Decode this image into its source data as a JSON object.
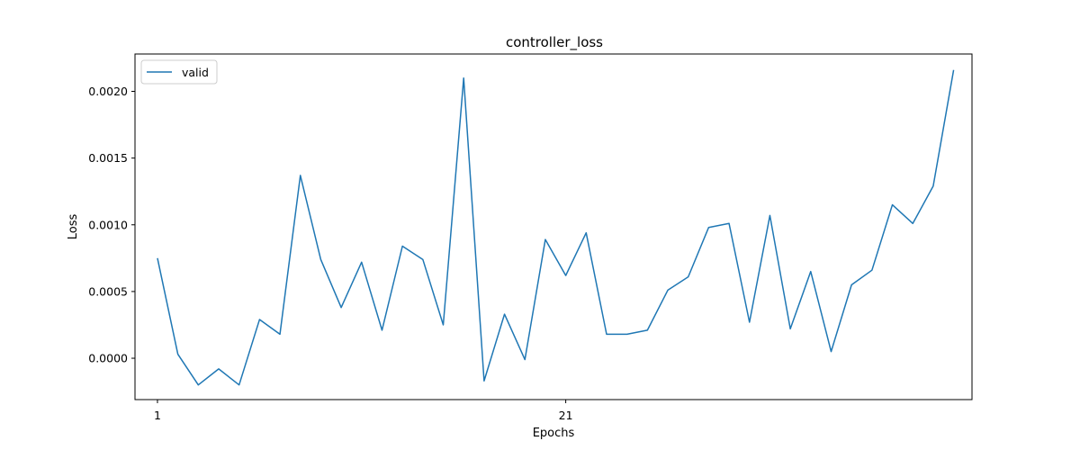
{
  "chart_data": {
    "type": "line",
    "title": "controller_loss",
    "xlabel": "Epochs",
    "ylabel": "Loss",
    "xlim": [
      -0.1,
      40.9
    ],
    "ylim": [
      -0.00031,
      0.00228
    ],
    "xticks": [
      1,
      21
    ],
    "xtick_labels": [
      "1",
      "21"
    ],
    "yticks": [
      0.0,
      0.0005,
      0.001,
      0.0015,
      0.002
    ],
    "ytick_labels": [
      "0.0000",
      "0.0005",
      "0.0010",
      "0.0015",
      "0.0020"
    ],
    "legend": {
      "position": "top-left"
    },
    "grid": false,
    "series": [
      {
        "name": "valid",
        "color": "#1f77b4",
        "x": [
          1,
          2,
          3,
          4,
          5,
          6,
          7,
          8,
          9,
          10,
          11,
          12,
          13,
          14,
          15,
          16,
          17,
          18,
          19,
          20,
          21,
          22,
          23,
          24,
          25,
          26,
          27,
          28,
          29,
          30,
          31,
          32,
          33,
          34,
          35,
          36,
          37,
          38,
          39,
          40
        ],
        "values": [
          0.00075,
          3e-05,
          -0.0002,
          -8e-05,
          -0.0002,
          0.00029,
          0.00018,
          0.00137,
          0.00074,
          0.00038,
          0.00072,
          0.00021,
          0.00084,
          0.00074,
          0.00025,
          0.0021,
          -0.00017,
          0.00033,
          -1e-05,
          0.00089,
          0.00062,
          0.00094,
          0.00018,
          0.00018,
          0.00021,
          0.00051,
          0.00061,
          0.00098,
          0.00101,
          0.00027,
          0.00107,
          0.00022,
          0.00065,
          5e-05,
          0.00055,
          0.00066,
          0.00115,
          0.00101,
          0.00129,
          0.00216
        ]
      }
    ]
  }
}
